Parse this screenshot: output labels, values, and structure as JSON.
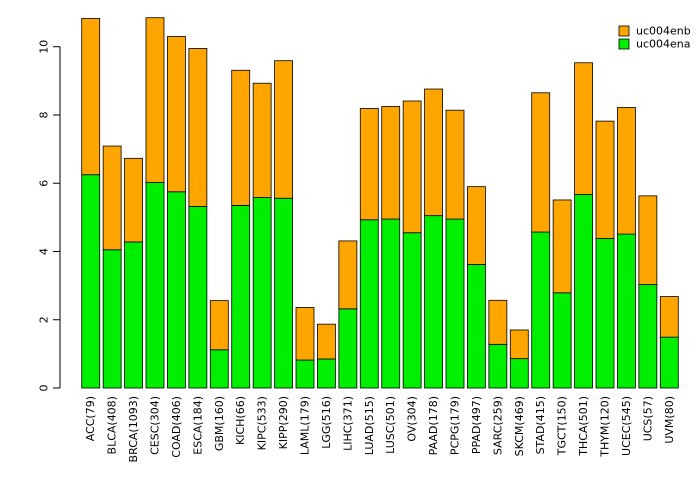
{
  "chart_data": {
    "type": "bar",
    "stacked": true,
    "title": "",
    "xlabel": "",
    "ylabel": "",
    "ylim": [
      0,
      10.9
    ],
    "yticks": [
      0,
      2,
      4,
      6,
      8,
      10
    ],
    "grid": false,
    "legend_position": "top-right",
    "categories": [
      "ACC(79)",
      "BLCA(408)",
      "BRCA(1093)",
      "CESC(304)",
      "COAD(406)",
      "ESCA(184)",
      "GBM(160)",
      "KICH(66)",
      "KIPC(533)",
      "KIPP(290)",
      "LAML(179)",
      "LGG(516)",
      "LIHC(371)",
      "LUAD(515)",
      "LUSC(501)",
      "OV(304)",
      "PAAD(178)",
      "PCPG(179)",
      "PPAD(497)",
      "SARC(259)",
      "SKCM(469)",
      "STAD(415)",
      "TGCT(150)",
      "THCA(501)",
      "THYM(120)",
      "UCEC(545)",
      "UCS(57)",
      "UVM(80)"
    ],
    "series": [
      {
        "name": "uc004ena",
        "color": "#00ee00",
        "values": [
          6.25,
          4.05,
          4.28,
          6.02,
          5.75,
          5.32,
          1.12,
          5.35,
          5.58,
          5.56,
          0.82,
          0.85,
          2.32,
          4.93,
          4.95,
          4.55,
          5.05,
          4.95,
          3.62,
          1.28,
          0.86,
          4.57,
          2.79,
          5.67,
          4.38,
          4.51,
          3.03,
          1.49
        ]
      },
      {
        "name": "uc004enb",
        "color": "#ffa500",
        "values": [
          4.58,
          3.04,
          2.45,
          4.83,
          4.55,
          4.63,
          1.44,
          3.96,
          3.35,
          4.03,
          1.54,
          1.02,
          1.99,
          3.26,
          3.3,
          3.86,
          3.71,
          3.19,
          2.28,
          1.29,
          0.84,
          4.08,
          2.72,
          3.86,
          3.44,
          3.71,
          2.6,
          1.19
        ]
      }
    ],
    "legend": [
      "uc004enb",
      "uc004ena"
    ]
  }
}
